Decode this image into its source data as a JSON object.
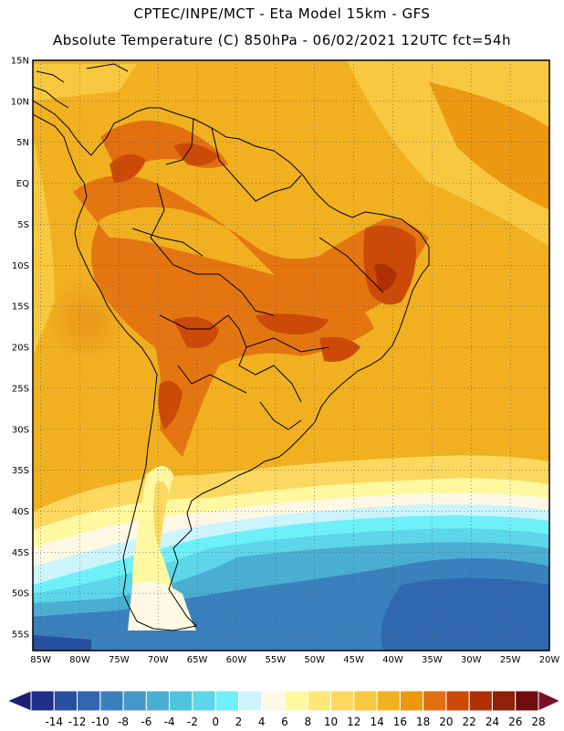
{
  "header": {
    "title_line1": "CPTEC/INPE/MCT -  Eta Model 15km - GFS",
    "title_line2": "Absolute Temperature (C) 850hPa - 06/02/2021 12UTC fct=54h"
  },
  "map": {
    "lat_labels": [
      "15N",
      "10N",
      "5N",
      "EQ",
      "5S",
      "10S",
      "15S",
      "20S",
      "25S",
      "30S",
      "35S",
      "40S",
      "45S",
      "50S",
      "55S"
    ],
    "lon_labels": [
      "85W",
      "80W",
      "75W",
      "70W",
      "65W",
      "60W",
      "55W",
      "50W",
      "45W",
      "40W",
      "35W",
      "30W",
      "25W",
      "20W"
    ],
    "lat_range": [
      15,
      -57
    ],
    "lon_range": [
      -86,
      -20
    ],
    "gridlines": "dotted"
  },
  "colorbar": {
    "levels": [
      "-14",
      "-12",
      "-10",
      "-8",
      "-6",
      "-4",
      "-2",
      "0",
      "2",
      "4",
      "6",
      "8",
      "10",
      "12",
      "14",
      "16",
      "18",
      "20",
      "22",
      "24",
      "26",
      "28"
    ],
    "colors": [
      "#20308a",
      "#2850a0",
      "#3068b0",
      "#3a80bc",
      "#4498c8",
      "#4aaed2",
      "#50c2dc",
      "#5cd6e8",
      "#6ef0f8",
      "#ccf4fc",
      "#fff8e4",
      "#fff8a0",
      "#ffe878",
      "#fcd860",
      "#f8c840",
      "#f0b020",
      "#ec9810",
      "#e27010",
      "#cc4a08",
      "#b03006",
      "#902008",
      "#700e0e"
    ],
    "colors_unit": "degC"
  }
}
